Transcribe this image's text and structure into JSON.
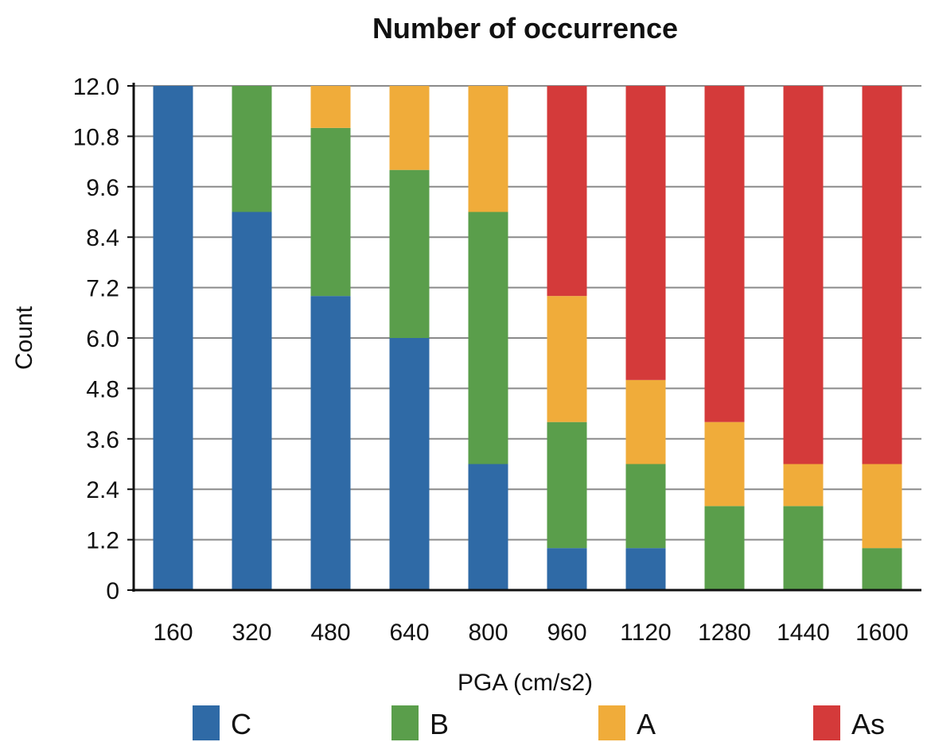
{
  "chart_data": {
    "type": "bar",
    "stacked": true,
    "title": "Number of occurrence",
    "xlabel": "PGA (cm/s2)",
    "ylabel": "Count",
    "ylim": [
      0,
      12.0
    ],
    "yticks": [
      "0",
      "1.2",
      "2.4",
      "3.6",
      "4.8",
      "6.0",
      "7.2",
      "8.4",
      "9.6",
      "10.8",
      "12.0"
    ],
    "categories": [
      "160",
      "320",
      "480",
      "640",
      "800",
      "960",
      "1120",
      "1280",
      "1440",
      "1600"
    ],
    "series": [
      {
        "name": "C",
        "color": "#2f6aa6",
        "values": [
          12,
          9,
          7,
          6,
          3,
          1,
          1,
          0,
          0,
          0
        ]
      },
      {
        "name": "B",
        "color": "#5a9e4b",
        "values": [
          0,
          3,
          4,
          4,
          6,
          3,
          2,
          2,
          2,
          1
        ]
      },
      {
        "name": "A",
        "color": "#f0ac3a",
        "values": [
          0,
          0,
          1,
          2,
          3,
          3,
          2,
          2,
          1,
          2
        ]
      },
      {
        "name": "As",
        "color": "#d43a3a",
        "values": [
          0,
          0,
          0,
          0,
          0,
          5,
          7,
          8,
          9,
          9
        ]
      }
    ],
    "grid": true,
    "legend_position": "bottom"
  }
}
